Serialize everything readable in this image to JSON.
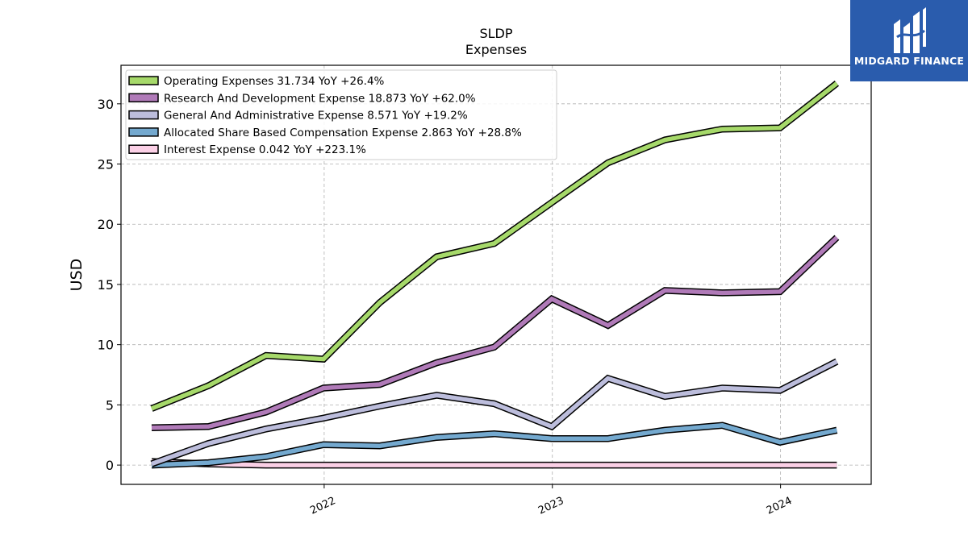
{
  "chart_data": {
    "type": "line",
    "title": "SLDP",
    "subtitle": "Expenses",
    "xlabel": "",
    "ylabel": "USD",
    "ylim": [
      -1.6,
      33.2
    ],
    "yticks": [
      0,
      5,
      10,
      15,
      20,
      25,
      30
    ],
    "xlim": [
      "2021-02-10",
      "2024-05-25"
    ],
    "xticks": [
      {
        "date": "2022-01-01",
        "label": "2022"
      },
      {
        "date": "2023-01-01",
        "label": "2023"
      },
      {
        "date": "2024-01-01",
        "label": "2024"
      }
    ],
    "grid": true,
    "legend_position": "top-left",
    "x": [
      "2021-03-31",
      "2021-06-30",
      "2021-09-30",
      "2021-12-31",
      "2022-03-31",
      "2022-06-30",
      "2022-09-30",
      "2022-12-31",
      "2023-03-31",
      "2023-06-30",
      "2023-09-30",
      "2023-12-31",
      "2024-03-31"
    ],
    "series": [
      {
        "name": "Operating Expenses",
        "legend": "Operating Expenses  31.734 YoY +26.4%",
        "color": "#a6d96a",
        "values": [
          4.7,
          6.6,
          9.1,
          8.8,
          13.5,
          17.3,
          18.4,
          21.8,
          25.1,
          27.0,
          27.9,
          28.0,
          31.7
        ]
      },
      {
        "name": "Research And Development Expense",
        "legend": "Research And Development Expense  18.873 YoY +62.0%",
        "color": "#b07ab8",
        "values": [
          3.1,
          3.2,
          4.4,
          6.4,
          6.7,
          8.5,
          9.8,
          13.8,
          11.6,
          14.5,
          14.3,
          14.4,
          18.9
        ]
      },
      {
        "name": "General And Administrative Expense",
        "legend": "General And Administrative Expense  8.571 YoY +19.2%",
        "color": "#bcbddc",
        "values": [
          0.1,
          1.8,
          3.0,
          3.9,
          4.9,
          5.8,
          5.1,
          3.2,
          7.2,
          5.7,
          6.4,
          6.2,
          8.6
        ]
      },
      {
        "name": "Allocated Share Based Compensation Expense",
        "legend": "Allocated Share Based Compensation Expense  2.863 YoY +28.8%",
        "color": "#74a9cf",
        "values": [
          0.0,
          0.2,
          0.7,
          1.7,
          1.6,
          2.3,
          2.6,
          2.2,
          2.2,
          2.9,
          3.3,
          1.9,
          2.9
        ]
      },
      {
        "name": "Interest Expense",
        "legend": "Interest Expense  0.042 YoY +223.1%",
        "color": "#fbd0e6",
        "values": [
          0.3,
          0.1,
          0.0,
          0.0,
          0.0,
          0.0,
          0.0,
          0.0,
          0.0,
          0.0,
          0.0,
          0.0,
          0.0
        ]
      }
    ]
  },
  "logo": {
    "text": "MIDGARD FINANCE",
    "background": "#2a5cad"
  }
}
